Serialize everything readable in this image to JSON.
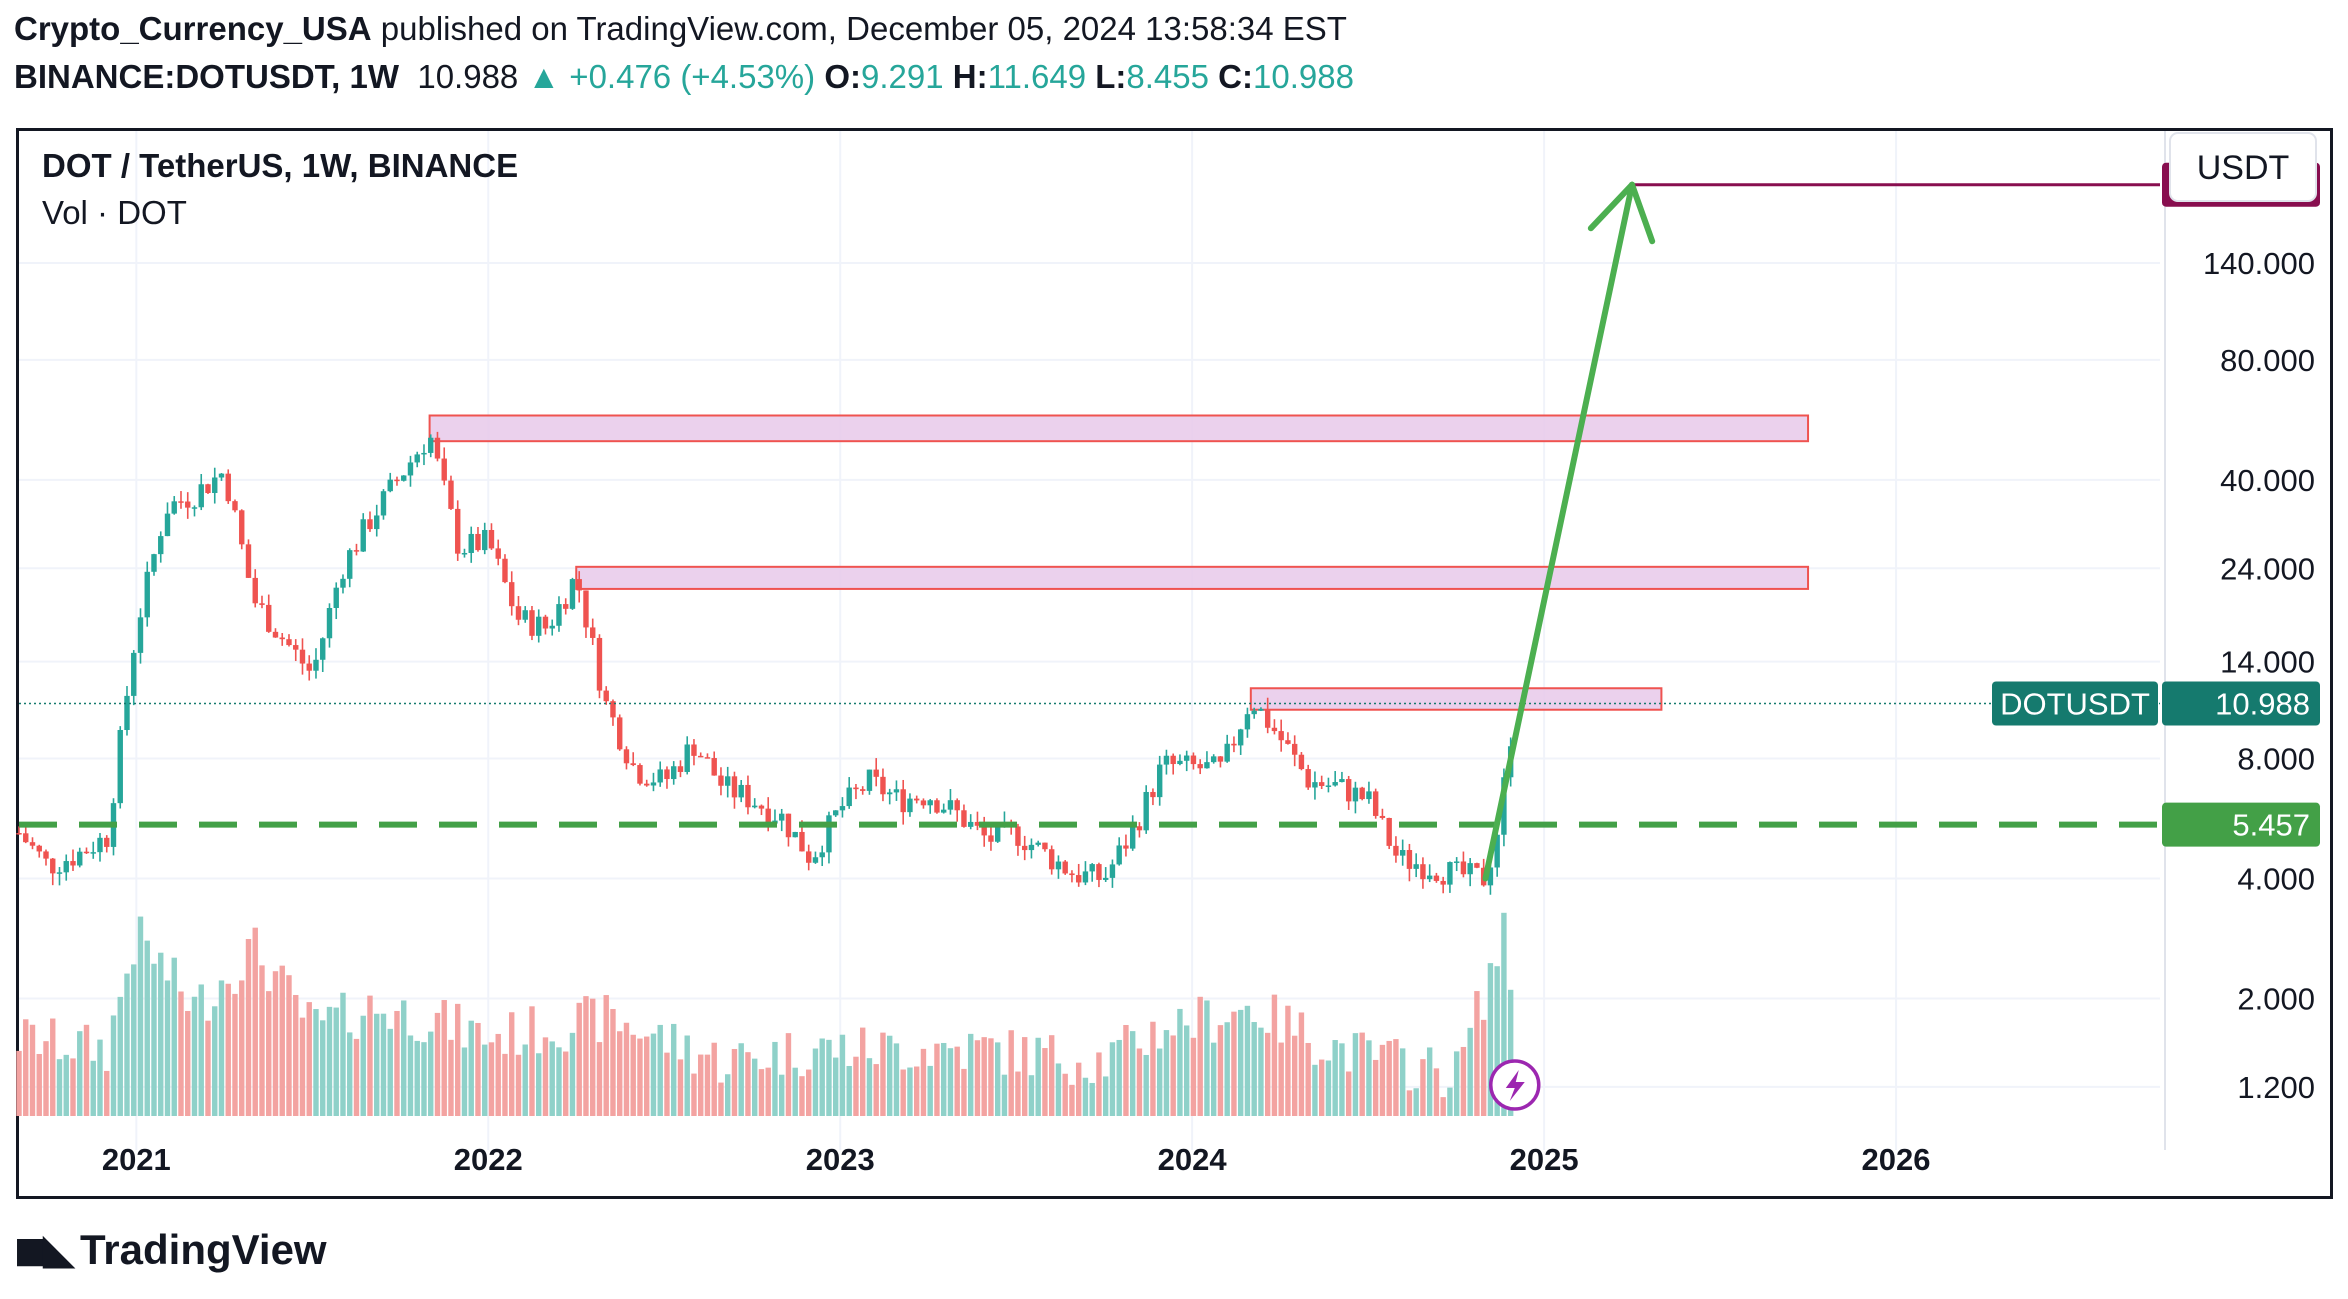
{
  "header": {
    "author": "Crypto_Currency_USA",
    "published_text": "published on TradingView.com, December 05, 2024 13:58:34 EST",
    "symbol": "BINANCE:DOTUSDT, 1W",
    "last": "10.988",
    "change": "+0.476 (+4.53%)",
    "o_label": "O:",
    "o": "9.291",
    "h_label": "H:",
    "h": "11.649",
    "l_label": "L:",
    "l": "8.455",
    "c_label": "C:",
    "c": "10.988"
  },
  "legend": {
    "title": "DOT / TetherUS, 1W, BINANCE",
    "volume": "Vol · DOT"
  },
  "currency_button": "USDT",
  "footer": {
    "brand": "TradingView"
  },
  "colors": {
    "up": "#26a69a",
    "down": "#ef5350",
    "vol_up": "#8fd1c9",
    "vol_down": "#f3a3a1",
    "target": "#880e4f",
    "support": "#43a047",
    "zone_fill": "#e7c9ea",
    "zone_stroke": "#ef5350",
    "price_tag": "#157a6e"
  },
  "chart_data": {
    "type": "candlestick",
    "scale": "log",
    "ylim": [
      1.05,
      300
    ],
    "y_ticks": [
      1.2,
      2.0,
      4.0,
      8.0,
      14.0,
      24.0,
      40.0,
      80.0,
      140.0
    ],
    "y_tick_labels": [
      "1.200",
      "2.000",
      "4.000",
      "8.000",
      "14.000",
      "24.000",
      "40.000",
      "80.000",
      "140.000"
    ],
    "x_ticks": [
      "2021",
      "2022",
      "2023",
      "2024",
      "2025",
      "2026"
    ],
    "x_range": [
      "2020-09",
      "2026-10"
    ],
    "current_price": {
      "label": "DOTUSDT",
      "value": "10.988",
      "price": 10.988
    },
    "support_line": {
      "value": "5.457",
      "price": 5.457,
      "style": "dashed"
    },
    "target_line": {
      "value": "220.000",
      "price": 220,
      "start_date": "2025-04"
    },
    "projection_arrow": {
      "from": {
        "date": "2024-11",
        "price": 4.0
      },
      "to": {
        "date": "2025-04",
        "price": 220
      }
    },
    "resistance_zones": [
      {
        "from": "2021-11",
        "to": "2025-10",
        "low": 50,
        "high": 58
      },
      {
        "from": "2022-04",
        "to": "2025-10",
        "low": 21.3,
        "high": 24.2
      },
      {
        "from": "2024-03",
        "to": "2025-05",
        "low": 10.6,
        "high": 12.0
      }
    ],
    "price_path": [
      [
        "2020-09",
        5.2
      ],
      [
        "2020-10",
        4.3
      ],
      [
        "2020-11",
        4.6
      ],
      [
        "2020-12",
        5.1
      ],
      [
        "2021-01",
        17.0
      ],
      [
        "2021-02",
        34.0
      ],
      [
        "2021-03",
        37.0
      ],
      [
        "2021-04",
        42.0
      ],
      [
        "2021-05",
        20.0
      ],
      [
        "2021-06",
        16.0
      ],
      [
        "2021-07",
        13.0
      ],
      [
        "2021-08",
        24.0
      ],
      [
        "2021-09",
        32.0
      ],
      [
        "2021-10",
        41.0
      ],
      [
        "2021-11",
        52.0
      ],
      [
        "2021-12",
        27.0
      ],
      [
        "2022-01",
        28.0
      ],
      [
        "2022-02",
        18.0
      ],
      [
        "2022-03",
        17.0
      ],
      [
        "2022-04",
        23.0
      ],
      [
        "2022-05",
        11.0
      ],
      [
        "2022-06",
        7.5
      ],
      [
        "2022-07",
        7.0
      ],
      [
        "2022-08",
        8.7
      ],
      [
        "2022-09",
        6.8
      ],
      [
        "2022-10",
        6.3
      ],
      [
        "2022-11",
        5.7
      ],
      [
        "2022-12",
        4.5
      ],
      [
        "2023-01",
        6.0
      ],
      [
        "2023-02",
        7.0
      ],
      [
        "2023-03",
        6.3
      ],
      [
        "2023-04",
        6.5
      ],
      [
        "2023-05",
        5.8
      ],
      [
        "2023-06",
        5.0
      ],
      [
        "2023-07",
        5.2
      ],
      [
        "2023-08",
        4.6
      ],
      [
        "2023-09",
        4.1
      ],
      [
        "2023-10",
        4.0
      ],
      [
        "2023-11",
        5.3
      ],
      [
        "2023-12",
        7.7
      ],
      [
        "2024-01",
        7.6
      ],
      [
        "2024-02",
        7.5
      ],
      [
        "2024-03",
        11.3
      ],
      [
        "2024-04",
        9.0
      ],
      [
        "2024-05",
        7.0
      ],
      [
        "2024-06",
        6.8
      ],
      [
        "2024-07",
        6.3
      ],
      [
        "2024-08",
        4.5
      ],
      [
        "2024-09",
        4.3
      ],
      [
        "2024-10",
        4.1
      ],
      [
        "2024-11",
        4.0
      ],
      [
        "2024-11-15",
        5.5
      ],
      [
        "2024-12",
        10.988
      ]
    ],
    "volume_path": [
      [
        "2020-09",
        1.6
      ],
      [
        "2020-12",
        1.5
      ],
      [
        "2021-01",
        2.9
      ],
      [
        "2021-03",
        1.9
      ],
      [
        "2021-05",
        2.7
      ],
      [
        "2021-07",
        1.7
      ],
      [
        "2021-09",
        1.9
      ],
      [
        "2021-11",
        1.8
      ],
      [
        "2022-01",
        1.6
      ],
      [
        "2022-05",
        1.8
      ],
      [
        "2022-09",
        1.4
      ],
      [
        "2022-12",
        1.5
      ],
      [
        "2023-03",
        1.5
      ],
      [
        "2023-06",
        1.5
      ],
      [
        "2023-10",
        1.4
      ],
      [
        "2023-12",
        1.7
      ],
      [
        "2024-03",
        1.9
      ],
      [
        "2024-06",
        1.5
      ],
      [
        "2024-10",
        1.3
      ],
      [
        "2024-11-20",
        2.9
      ],
      [
        "2024-12",
        2.0
      ]
    ]
  }
}
